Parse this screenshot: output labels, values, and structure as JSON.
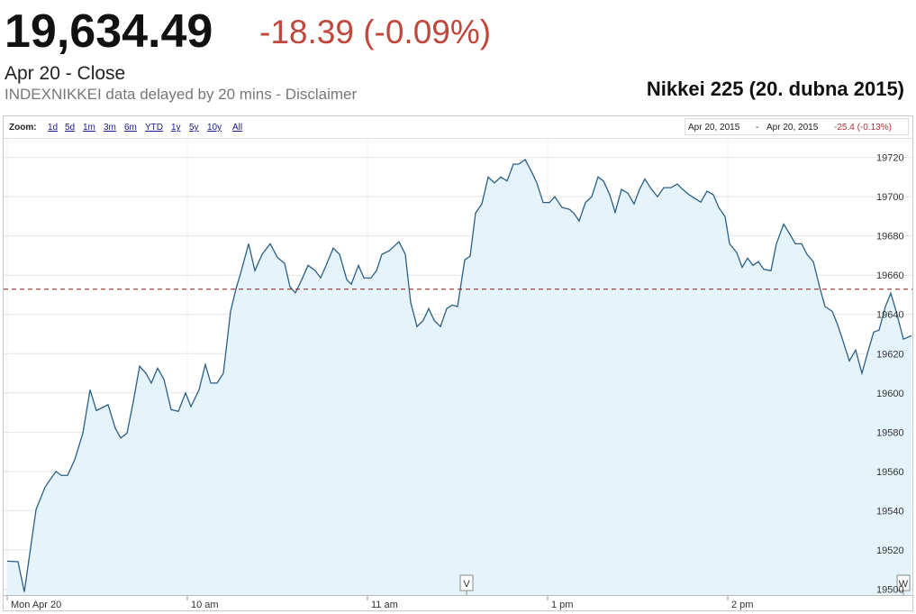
{
  "header": {
    "price": "19,634.49",
    "change": "-18.39 (-0.09%)",
    "status": "Apr 20 - Close",
    "note": "INDEXNIKKEI data delayed by 20 mins - Disclaimer"
  },
  "toolbar": {
    "zoom_label": "Zoom:",
    "zoom_options": [
      "1d",
      "5d",
      "1m",
      "3m",
      "6m",
      "YTD",
      "1y",
      "5y",
      "10y",
      "All"
    ],
    "range_start": "Apr 20, 2015",
    "range_separator": "-",
    "range_end": "Apr 20, 2015",
    "range_change": "-25.4 (-0.13%)"
  },
  "chart_data": {
    "type": "area",
    "title": "Nikkei 225 (20. dubna 2015)",
    "x": [
      0,
      3.6,
      5.7,
      9.6,
      12.6,
      16.2,
      18,
      20.1,
      22.5,
      25.2,
      27.6,
      29.7,
      33.6,
      36,
      37.8,
      39.9,
      42,
      44.1,
      46.2,
      48,
      50.1,
      52.2,
      54.6,
      57,
      59.4,
      61.2,
      63.9,
      66,
      67.8,
      69.9,
      72,
      74.4,
      76.2,
      78,
      80.4,
      82.5,
      84.9,
      87.6,
      90,
      92.4,
      94.2,
      96,
      98.1,
      100.2,
      102.6,
      104.4,
      106.5,
      108.6,
      110.7,
      113.1,
      114.6,
      117,
      118.8,
      121.2,
      123,
      124.8,
      127.2,
      130.5,
      132.6,
      134.4,
      136.5,
      138.6,
      140.4,
      142.2,
      144.3,
      146.4,
      148.2,
      150,
      152.4,
      154.2,
      156,
      158.1,
      160.2,
      162.3,
      164.4,
      166.5,
      168.6,
      170.4,
      172.5,
      174.6,
      176.4,
      178.5,
      180.6,
      182.4,
      184.8,
      187.2,
      188.7,
      190.5,
      192.6,
      194.7,
      196.8,
      198.6,
      200.7,
      202.5,
      204.6,
      206.7,
      208.8,
      210.6,
      212.4,
      214.2,
      216.6,
      218.7,
      221.1,
      223.2,
      225,
      227.1,
      229.2,
      231,
      233.1,
      235.2,
      237,
      239.1,
      240.6,
      243,
      244.8,
      246.6,
      248.4,
      250.2,
      252,
      254.4,
      256.2,
      258.6,
      260.4,
      262.5,
      264.6,
      266.4,
      268.5,
      270.6,
      272.4,
      274.8,
      276.6,
      278.4,
      280.5,
      282.6,
      284.7,
      286.5,
      288.6,
      290.4,
      292.5,
      294.3,
      296.1,
      298.5,
      301.2
    ],
    "values": [
      19514.3,
      19514,
      19498.6,
      19540.5,
      19552,
      19560,
      19558,
      19558,
      19566,
      19579.5,
      19601.6,
      19591,
      19594,
      19582,
      19577,
      19579.5,
      19595.6,
      19613.6,
      19610,
      19605,
      19612.6,
      19607,
      19591.5,
      19590.6,
      19600,
      19593,
      19601.6,
      19614.5,
      19605,
      19605,
      19610,
      19641.6,
      19653,
      19662.3,
      19676,
      19662.3,
      19670.6,
      19676,
      19669,
      19666,
      19654,
      19651,
      19657.7,
      19665,
      19662.3,
      19658.6,
      19666,
      19673.8,
      19670.6,
      19657.7,
      19655.4,
      19665,
      19658.6,
      19658.6,
      19662.3,
      19670.6,
      19672.4,
      19677,
      19670.6,
      19646,
      19633.8,
      19637,
      19643,
      19637,
      19633.8,
      19643,
      19644.8,
      19644,
      19667.8,
      19669.7,
      19691.7,
      19696.3,
      19710,
      19707,
      19710,
      19708,
      19716.6,
      19716.6,
      19718.9,
      19712.9,
      19707,
      19697,
      19697,
      19700,
      19694.5,
      19693.6,
      19691.7,
      19687.6,
      19697,
      19700,
      19710,
      19708,
      19701,
      19692,
      19703.7,
      19701.8,
      19696.3,
      19703.7,
      19709,
      19704.6,
      19700,
      19704.6,
      19704.6,
      19706.4,
      19703.7,
      19701,
      19699,
      19697.2,
      19702.8,
      19701,
      19694.5,
      19689.9,
      19676,
      19671.5,
      19664,
      19668.7,
      19665,
      19666.9,
      19663,
      19662.3,
      19676,
      19686,
      19681.6,
      19676,
      19676,
      19670.6,
      19666.9,
      19654,
      19644,
      19641.6,
      19634.7,
      19626.4,
      19616.3,
      19621.8,
      19610,
      19620,
      19631,
      19632,
      19644,
      19650.8,
      19641.6,
      19627.4,
      19629.2
    ],
    "color": "#2b5f85",
    "fill": "#e5f4fb",
    "xlim": [
      0,
      301.5
    ],
    "ylim": [
      19497,
      19729
    ],
    "xticks": [
      {
        "value": 0,
        "label": "Mon Apr 20"
      },
      {
        "value": 60,
        "label": "10 am"
      },
      {
        "value": 120,
        "label": "11 am"
      },
      {
        "value": 180,
        "label": "1 pm"
      },
      {
        "value": 240,
        "label": "2 pm"
      }
    ],
    "yticks": [
      19500,
      19520,
      19540,
      19560,
      19580,
      19600,
      19620,
      19640,
      19660,
      19680,
      19700,
      19720
    ],
    "grid": true,
    "reference_line": {
      "value": 19652.88,
      "color": "#8b1a1a"
    },
    "flags": [
      {
        "label": "V",
        "x": 153
      },
      {
        "label": "W",
        "x": 298.5
      }
    ]
  }
}
